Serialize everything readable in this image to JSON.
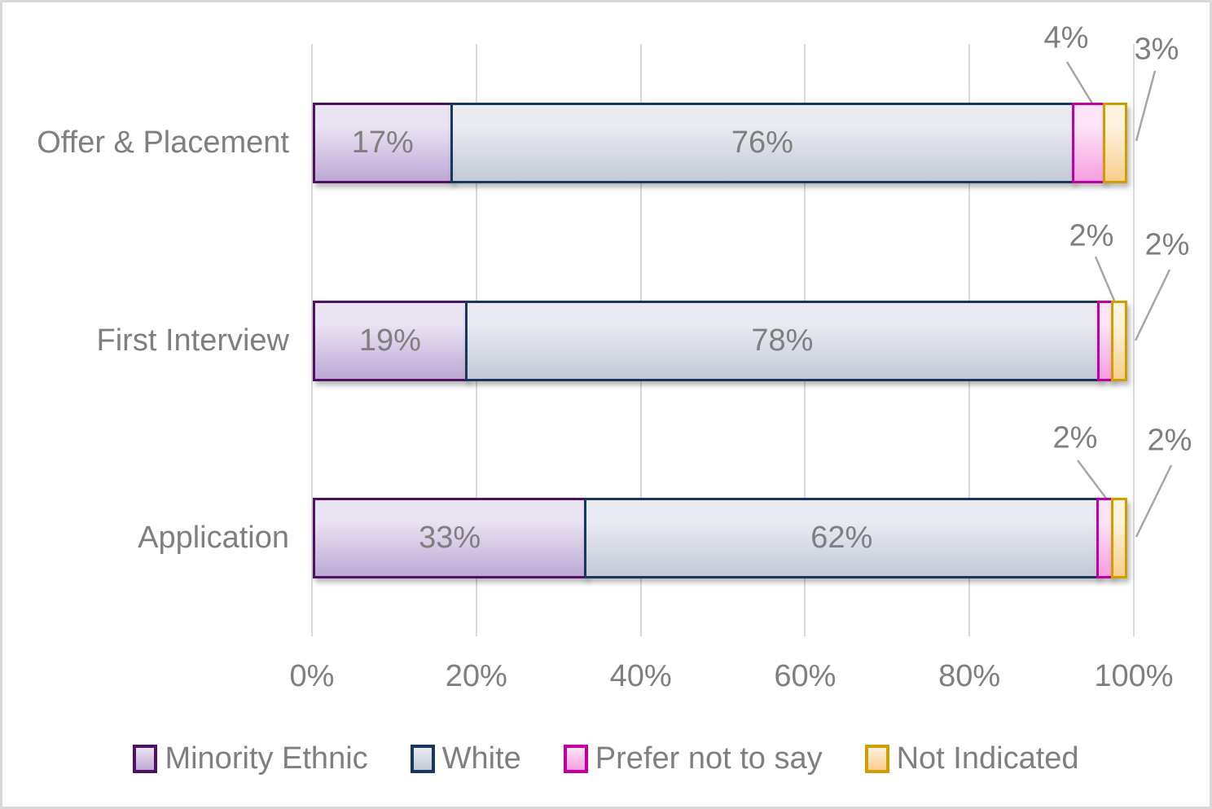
{
  "chart_data": {
    "type": "bar",
    "orientation": "horizontal-stacked",
    "title": "",
    "categories": [
      "Offer & Placement",
      "First Interview",
      "Application"
    ],
    "series": [
      {
        "name": "Minority Ethnic",
        "values": [
          17,
          19,
          33
        ],
        "border_color": "#4f1164",
        "fill_top": "#eae3f2",
        "fill_bottom": "#bda8d5",
        "label_placement": "inside"
      },
      {
        "name": "White",
        "values": [
          76,
          78,
          62
        ],
        "border_color": "#17375e",
        "fill_top": "#e9ebf1",
        "fill_bottom": "#c3c9d6",
        "label_placement": "inside"
      },
      {
        "name": "Prefer not to say",
        "values": [
          4,
          2,
          2
        ],
        "border_color": "#c000a0",
        "fill_top": "#fce5f6",
        "fill_bottom": "#f79edf",
        "label_placement": "callout"
      },
      {
        "name": "Not Indicated",
        "values": [
          3,
          2,
          2
        ],
        "border_color": "#d09e00",
        "fill_top": "#fdf2de",
        "fill_bottom": "#f8ce8e",
        "label_placement": "callout"
      }
    ],
    "data_label_suffix": "%",
    "x_tick_labels": [
      "0%",
      "20%",
      "40%",
      "60%",
      "80%",
      "100%"
    ],
    "xlim": [
      0,
      100
    ],
    "grid": true,
    "legend_position": "bottom",
    "text_color": "#7f7f7f",
    "gridline_color": "#d9d9d9",
    "leader_line_color": "#a6a6a6"
  }
}
